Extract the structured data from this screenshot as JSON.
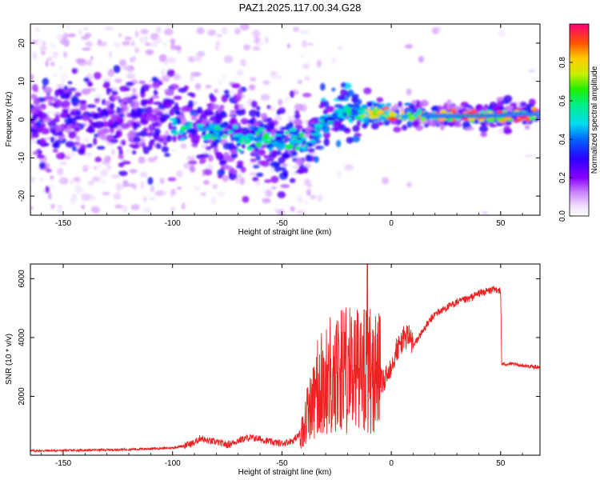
{
  "figure_title": "PAZ1.2025.117.00.34.G28",
  "chart_data": [
    {
      "type": "heatmap",
      "xlabel": "Height of straight line (km)",
      "ylabel": "Frequency (Hz)",
      "xlim": [
        -165,
        68
      ],
      "ylim": [
        -25,
        25
      ],
      "xticks": [
        -150,
        -100,
        -50,
        0,
        50
      ],
      "yticks": [
        -20,
        -10,
        0,
        10,
        20
      ],
      "colorbar": {
        "label": "Normalized spectral amplitude",
        "range": [
          0,
          1
        ],
        "ticks": [
          0.0,
          0.2,
          0.4,
          0.6,
          0.8
        ]
      },
      "ridge": {
        "description_free_points": [
          {
            "x": -165,
            "y": 0
          },
          {
            "x": -130,
            "y": 0
          },
          {
            "x": -100,
            "y": -1
          },
          {
            "x": -80,
            "y": -3
          },
          {
            "x": -60,
            "y": -5
          },
          {
            "x": -45,
            "y": -6
          },
          {
            "x": -38,
            "y": -7
          },
          {
            "x": -32,
            "y": -1
          },
          {
            "x": -20,
            "y": 2
          },
          {
            "x": -10,
            "y": 2
          },
          {
            "x": 0,
            "y": 1
          },
          {
            "x": 10,
            "y": 1.5
          },
          {
            "x": 20,
            "y": 1
          },
          {
            "x": 40,
            "y": 1
          },
          {
            "x": 68,
            "y": 1.5
          }
        ]
      }
    },
    {
      "type": "line",
      "xlabel": "Height of straight line (km)",
      "ylabel": "SNR (10 * v/v)",
      "xlim": [
        -165,
        68
      ],
      "ylim": [
        0,
        6500
      ],
      "xticks": [
        -150,
        -100,
        -50,
        0,
        50
      ],
      "yticks": [
        2000,
        4000,
        6000
      ],
      "series_color": "#ee2222",
      "series": [
        {
          "x": [
            -165,
            -150,
            -140,
            -130,
            -120,
            -110,
            -100,
            -95,
            -90,
            -87,
            -85,
            -80,
            -75,
            -70,
            -65,
            -60,
            -55,
            -50,
            -45,
            -42,
            -40,
            -38,
            -36,
            -34,
            -32,
            -30,
            -28,
            -26,
            -24,
            -22,
            -20,
            -18,
            -16,
            -14,
            -12,
            -10,
            -8,
            -6,
            -4,
            -2,
            0,
            2,
            5,
            8,
            10,
            15,
            20,
            25,
            30,
            35,
            40,
            45,
            49,
            50,
            50.5,
            55,
            60,
            65,
            68
          ],
          "y": [
            150,
            160,
            170,
            180,
            200,
            220,
            250,
            320,
            420,
            600,
            500,
            450,
            350,
            500,
            600,
            550,
            450,
            400,
            500,
            700,
            900,
            1400,
            1900,
            2200,
            2400,
            2500,
            2700,
            2400,
            2800,
            3000,
            2700,
            2900,
            3200,
            2700,
            3100,
            3000,
            2600,
            2900,
            2400,
            2700,
            3100,
            3500,
            3900,
            4100,
            3700,
            4300,
            4800,
            5000,
            5200,
            5300,
            5500,
            5600,
            5650,
            5500,
            3100,
            3100,
            3050,
            3000,
            3000
          ]
        }
      ]
    }
  ]
}
